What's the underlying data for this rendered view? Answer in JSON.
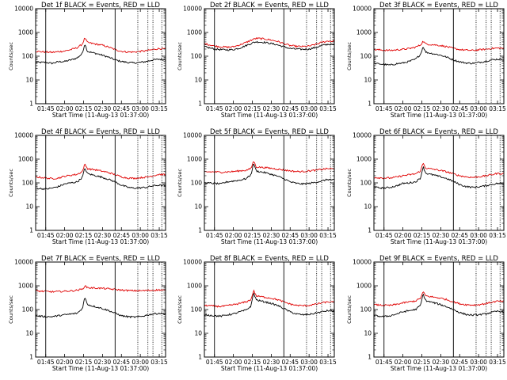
{
  "figure": {
    "colors": {
      "events": "#000000",
      "lld": "#e00000",
      "axes": "#000000",
      "background": "#ffffff"
    }
  },
  "chart_data": [
    {
      "type": "line",
      "title": "Det 1f BLACK = Events, RED = LLD",
      "xlabel": "Start Time (11-Aug-13 01:37:00)",
      "ylabel": "Counts/sec",
      "xlim": [
        "01:37",
        "03:20"
      ],
      "ylim": [
        1,
        10000
      ],
      "yscale": "log",
      "xticks": [
        "01:45",
        "02:00",
        "02:15",
        "02:30",
        "02:45",
        "03:00",
        "03:15"
      ],
      "yticks": [
        "1",
        "10",
        "100",
        "1000",
        "10000"
      ],
      "marker_lines_solid": [
        "01:45",
        "02:40"
      ],
      "marker_lines_dotted": [
        "02:58",
        "03:06",
        "03:10",
        "03:17"
      ],
      "x": [
        "01:37",
        "01:45",
        "01:50",
        "01:55",
        "02:00",
        "02:05",
        "02:10",
        "02:14",
        "02:16",
        "02:18",
        "02:20",
        "02:25",
        "02:30",
        "02:35",
        "02:40",
        "02:45",
        "02:50",
        "02:55",
        "03:00",
        "03:05",
        "03:10",
        "03:15",
        "03:20"
      ],
      "series": [
        {
          "name": "Events",
          "color": "#000000",
          "values": [
            55,
            55,
            50,
            58,
            60,
            70,
            85,
            130,
            340,
            160,
            150,
            130,
            110,
            90,
            70,
            60,
            55,
            52,
            55,
            60,
            70,
            75,
            70
          ]
        },
        {
          "name": "LLD",
          "color": "#e00000",
          "values": [
            160,
            150,
            145,
            155,
            165,
            190,
            230,
            320,
            600,
            380,
            360,
            320,
            290,
            240,
            190,
            160,
            150,
            150,
            160,
            170,
            190,
            210,
            200
          ]
        }
      ]
    },
    {
      "type": "line",
      "title": "Det 2f BLACK = Events, RED = LLD",
      "xlabel": "Start Time (11-Aug-13 01:37:00)",
      "ylabel": "Counts/sec",
      "xlim": [
        "01:37",
        "03:20"
      ],
      "ylim": [
        1,
        10000
      ],
      "yscale": "log",
      "xticks": [
        "01:45",
        "02:00",
        "02:15",
        "02:30",
        "02:45",
        "03:00",
        "03:15"
      ],
      "yticks": [
        "1",
        "10",
        "100",
        "1000",
        "10000"
      ],
      "marker_lines_solid": [
        "01:45",
        "02:40"
      ],
      "marker_lines_dotted": [
        "02:58",
        "03:06",
        "03:10",
        "03:17"
      ],
      "x": [
        "01:37",
        "01:45",
        "01:50",
        "01:55",
        "02:00",
        "02:05",
        "02:10",
        "02:14",
        "02:16",
        "02:18",
        "02:20",
        "02:25",
        "02:30",
        "02:35",
        "02:40",
        "02:45",
        "02:50",
        "02:55",
        "03:00",
        "03:05",
        "03:10",
        "03:15",
        "03:20"
      ],
      "series": [
        {
          "name": "Events",
          "color": "#000000",
          "values": [
            250,
            200,
            190,
            185,
            190,
            220,
            280,
            340,
            380,
            400,
            400,
            380,
            340,
            300,
            250,
            210,
            200,
            195,
            200,
            230,
            280,
            320,
            300
          ]
        },
        {
          "name": "LLD",
          "color": "#e00000",
          "values": [
            340,
            270,
            250,
            240,
            250,
            300,
            380,
            470,
            520,
            560,
            560,
            530,
            480,
            420,
            340,
            280,
            260,
            255,
            265,
            310,
            380,
            440,
            420
          ]
        }
      ]
    },
    {
      "type": "line",
      "title": "Det 3f BLACK = Events, RED = LLD",
      "xlabel": "Start Time (11-Aug-13 01:37:00)",
      "ylabel": "Counts/sec",
      "xlim": [
        "01:37",
        "03:20"
      ],
      "ylim": [
        1,
        10000
      ],
      "yscale": "log",
      "xticks": [
        "01:45",
        "02:00",
        "02:15",
        "02:30",
        "02:45",
        "03:00",
        "03:15"
      ],
      "yticks": [
        "1",
        "10",
        "100",
        "1000",
        "10000"
      ],
      "marker_lines_solid": [
        "01:45",
        "02:40"
      ],
      "marker_lines_dotted": [
        "02:58",
        "03:06",
        "03:10",
        "03:17"
      ],
      "x": [
        "01:37",
        "01:45",
        "01:50",
        "01:55",
        "02:00",
        "02:05",
        "02:10",
        "02:14",
        "02:16",
        "02:18",
        "02:20",
        "02:25",
        "02:30",
        "02:35",
        "02:40",
        "02:45",
        "02:50",
        "02:55",
        "03:00",
        "03:05",
        "03:10",
        "03:15",
        "03:20"
      ],
      "series": [
        {
          "name": "Events",
          "color": "#000000",
          "values": [
            50,
            45,
            42,
            48,
            52,
            60,
            75,
            120,
            260,
            150,
            140,
            125,
            110,
            90,
            70,
            58,
            52,
            50,
            55,
            60,
            70,
            75,
            72
          ]
        },
        {
          "name": "LLD",
          "color": "#e00000",
          "values": [
            190,
            180,
            175,
            185,
            195,
            210,
            240,
            300,
            430,
            330,
            320,
            300,
            280,
            250,
            215,
            190,
            180,
            175,
            185,
            195,
            210,
            220,
            215
          ]
        }
      ]
    },
    {
      "type": "line",
      "title": "Det 4f BLACK = Events, RED = LLD",
      "xlabel": "Start Time (11-Aug-13 01:37:00)",
      "ylabel": "Counts/sec",
      "xlim": [
        "01:37",
        "03:20"
      ],
      "ylim": [
        1,
        10000
      ],
      "yscale": "log",
      "xticks": [
        "01:45",
        "02:00",
        "02:15",
        "02:30",
        "02:45",
        "03:00",
        "03:15"
      ],
      "yticks": [
        "1",
        "10",
        "100",
        "1000",
        "10000"
      ],
      "marker_lines_solid": [
        "01:45",
        "02:40"
      ],
      "marker_lines_dotted": [
        "02:58",
        "03:06",
        "03:10",
        "03:17"
      ],
      "x": [
        "01:37",
        "01:45",
        "01:50",
        "01:55",
        "02:00",
        "02:05",
        "02:10",
        "02:14",
        "02:16",
        "02:18",
        "02:20",
        "02:25",
        "02:30",
        "02:35",
        "02:40",
        "02:45",
        "02:50",
        "02:55",
        "03:00",
        "03:05",
        "03:10",
        "03:15",
        "03:20"
      ],
      "series": [
        {
          "name": "Events",
          "color": "#000000",
          "values": [
            60,
            55,
            60,
            70,
            90,
            100,
            110,
            170,
            420,
            250,
            230,
            200,
            170,
            140,
            110,
            80,
            65,
            60,
            62,
            65,
            75,
            80,
            75
          ]
        },
        {
          "name": "LLD",
          "color": "#e00000",
          "values": [
            180,
            160,
            150,
            160,
            190,
            210,
            230,
            300,
            620,
            400,
            380,
            350,
            310,
            270,
            220,
            180,
            160,
            155,
            165,
            175,
            200,
            230,
            220
          ]
        }
      ]
    },
    {
      "type": "line",
      "title": "Det 5f BLACK = Events, RED = LLD",
      "xlabel": "Start Time (11-Aug-13 01:37:00)",
      "ylabel": "Counts/sec",
      "xlim": [
        "01:37",
        "03:20"
      ],
      "ylim": [
        1,
        10000
      ],
      "yscale": "log",
      "xticks": [
        "01:45",
        "02:00",
        "02:15",
        "02:30",
        "02:45",
        "03:00",
        "03:15"
      ],
      "yticks": [
        "1",
        "10",
        "100",
        "1000",
        "10000"
      ],
      "marker_lines_solid": [
        "01:45",
        "02:40"
      ],
      "marker_lines_dotted": [
        "02:58",
        "03:06",
        "03:10",
        "03:17"
      ],
      "x": [
        "01:37",
        "01:45",
        "01:50",
        "01:55",
        "02:00",
        "02:05",
        "02:10",
        "02:14",
        "02:16",
        "02:18",
        "02:20",
        "02:25",
        "02:30",
        "02:35",
        "02:40",
        "02:45",
        "02:50",
        "02:55",
        "03:00",
        "03:05",
        "03:10",
        "03:15",
        "03:20"
      ],
      "series": [
        {
          "name": "Events",
          "color": "#000000",
          "values": [
            100,
            95,
            90,
            110,
            120,
            130,
            150,
            220,
            700,
            320,
            300,
            270,
            230,
            190,
            150,
            110,
            95,
            90,
            95,
            105,
            120,
            140,
            130
          ]
        },
        {
          "name": "LLD",
          "color": "#e00000",
          "values": [
            290,
            290,
            280,
            290,
            300,
            320,
            340,
            400,
            850,
            470,
            460,
            440,
            410,
            380,
            350,
            320,
            300,
            300,
            320,
            340,
            370,
            400,
            380
          ]
        }
      ]
    },
    {
      "type": "line",
      "title": "Det 6f BLACK = Events, RED = LLD",
      "xlabel": "Start Time (11-Aug-13 01:37:00)",
      "ylabel": "Counts/sec",
      "xlim": [
        "01:37",
        "03:20"
      ],
      "ylim": [
        1,
        10000
      ],
      "yscale": "log",
      "xticks": [
        "01:45",
        "02:00",
        "02:15",
        "02:30",
        "02:45",
        "03:00",
        "03:15"
      ],
      "yticks": [
        "1",
        "10",
        "100",
        "1000",
        "10000"
      ],
      "marker_lines_solid": [
        "01:45",
        "02:40"
      ],
      "marker_lines_dotted": [
        "02:58",
        "03:06",
        "03:10",
        "03:17"
      ],
      "x": [
        "01:37",
        "01:45",
        "01:50",
        "01:55",
        "02:00",
        "02:05",
        "02:10",
        "02:14",
        "02:16",
        "02:18",
        "02:20",
        "02:25",
        "02:30",
        "02:35",
        "02:40",
        "02:45",
        "02:50",
        "02:55",
        "03:00",
        "03:05",
        "03:10",
        "03:15",
        "03:20"
      ],
      "series": [
        {
          "name": "Events",
          "color": "#000000",
          "values": [
            65,
            60,
            65,
            75,
            95,
            100,
            110,
            160,
            500,
            260,
            240,
            210,
            180,
            150,
            115,
            85,
            70,
            65,
            68,
            75,
            85,
            95,
            90
          ]
        },
        {
          "name": "LLD",
          "color": "#e00000",
          "values": [
            170,
            160,
            160,
            175,
            200,
            220,
            240,
            320,
            700,
            420,
            400,
            370,
            330,
            290,
            240,
            200,
            180,
            170,
            180,
            195,
            220,
            250,
            240
          ]
        }
      ]
    },
    {
      "type": "line",
      "title": "Det 7f BLACK = Events, RED = LLD",
      "xlabel": "Start Time (11-Aug-13 01:37:00)",
      "ylabel": "Counts/sec",
      "xlim": [
        "01:37",
        "03:20"
      ],
      "ylim": [
        1,
        10000
      ],
      "yscale": "log",
      "xticks": [
        "01:45",
        "02:00",
        "02:15",
        "02:30",
        "02:45",
        "03:00",
        "03:15"
      ],
      "yticks": [
        "1",
        "10",
        "100",
        "1000",
        "10000"
      ],
      "marker_lines_solid": [
        "01:45",
        "02:40"
      ],
      "marker_lines_dotted": [
        "02:58",
        "03:06",
        "03:10",
        "03:17"
      ],
      "x": [
        "01:37",
        "01:45",
        "01:50",
        "01:55",
        "02:00",
        "02:05",
        "02:10",
        "02:14",
        "02:16",
        "02:18",
        "02:20",
        "02:25",
        "02:30",
        "02:35",
        "02:40",
        "02:45",
        "02:50",
        "02:55",
        "03:00",
        "03:05",
        "03:10",
        "03:15",
        "03:20"
      ],
      "series": [
        {
          "name": "Events",
          "color": "#000000",
          "values": [
            55,
            50,
            50,
            55,
            60,
            65,
            70,
            110,
            330,
            170,
            150,
            130,
            110,
            90,
            70,
            55,
            50,
            48,
            50,
            58,
            65,
            70,
            65
          ]
        },
        {
          "name": "LLD",
          "color": "#e00000",
          "values": [
            600,
            580,
            560,
            570,
            590,
            610,
            650,
            720,
            980,
            850,
            820,
            800,
            780,
            740,
            700,
            660,
            630,
            620,
            620,
            630,
            650,
            670,
            650
          ]
        }
      ]
    },
    {
      "type": "line",
      "title": "Det 8f BLACK = Events, RED = LLD",
      "xlabel": "Start Time (11-Aug-13 01:37:00)",
      "ylabel": "Counts/sec",
      "xlim": [
        "01:37",
        "03:20"
      ],
      "ylim": [
        1,
        10000
      ],
      "yscale": "log",
      "xticks": [
        "01:45",
        "02:00",
        "02:15",
        "02:30",
        "02:45",
        "03:00",
        "03:15"
      ],
      "yticks": [
        "1",
        "10",
        "100",
        "1000",
        "10000"
      ],
      "marker_lines_solid": [
        "01:45",
        "02:40"
      ],
      "marker_lines_dotted": [
        "02:58",
        "03:06",
        "03:10",
        "03:17"
      ],
      "x": [
        "01:37",
        "01:45",
        "01:50",
        "01:55",
        "02:00",
        "02:05",
        "02:10",
        "02:14",
        "02:16",
        "02:18",
        "02:20",
        "02:25",
        "02:30",
        "02:35",
        "02:40",
        "02:45",
        "02:50",
        "02:55",
        "03:00",
        "03:05",
        "03:10",
        "03:15",
        "03:20"
      ],
      "series": [
        {
          "name": "Events",
          "color": "#000000",
          "values": [
            60,
            55,
            52,
            60,
            65,
            80,
            95,
            140,
            520,
            260,
            240,
            210,
            180,
            150,
            110,
            80,
            65,
            60,
            62,
            70,
            80,
            90,
            85
          ]
        },
        {
          "name": "LLD",
          "color": "#e00000",
          "values": [
            150,
            140,
            135,
            145,
            160,
            180,
            210,
            260,
            640,
            380,
            360,
            330,
            300,
            260,
            210,
            170,
            150,
            145,
            150,
            165,
            190,
            210,
            200
          ]
        }
      ]
    },
    {
      "type": "line",
      "title": "Det 9f BLACK = Events, RED = LLD",
      "xlabel": "Start Time (11-Aug-13 01:37:00)",
      "ylabel": "Counts/sec",
      "xlim": [
        "01:37",
        "03:20"
      ],
      "ylim": [
        1,
        10000
      ],
      "yscale": "log",
      "xticks": [
        "01:45",
        "02:00",
        "02:15",
        "02:30",
        "02:45",
        "03:00",
        "03:15"
      ],
      "yticks": [
        "1",
        "10",
        "100",
        "1000",
        "10000"
      ],
      "marker_lines_solid": [
        "01:45",
        "02:40"
      ],
      "marker_lines_dotted": [
        "02:58",
        "03:06",
        "03:10",
        "03:17"
      ],
      "x": [
        "01:37",
        "01:45",
        "01:50",
        "01:55",
        "02:00",
        "02:05",
        "02:10",
        "02:14",
        "02:16",
        "02:18",
        "02:20",
        "02:25",
        "02:30",
        "02:35",
        "02:40",
        "02:45",
        "02:50",
        "02:55",
        "03:00",
        "03:05",
        "03:10",
        "03:15",
        "03:20"
      ],
      "series": [
        {
          "name": "Events",
          "color": "#000000",
          "values": [
            55,
            50,
            55,
            65,
            80,
            90,
            100,
            150,
            460,
            240,
            220,
            190,
            160,
            130,
            100,
            75,
            62,
            58,
            60,
            65,
            75,
            85,
            80
          ]
        },
        {
          "name": "LLD",
          "color": "#e00000",
          "values": [
            160,
            150,
            150,
            165,
            190,
            210,
            230,
            300,
            560,
            380,
            360,
            330,
            300,
            260,
            210,
            175,
            160,
            155,
            160,
            175,
            200,
            225,
            215
          ]
        }
      ]
    }
  ]
}
